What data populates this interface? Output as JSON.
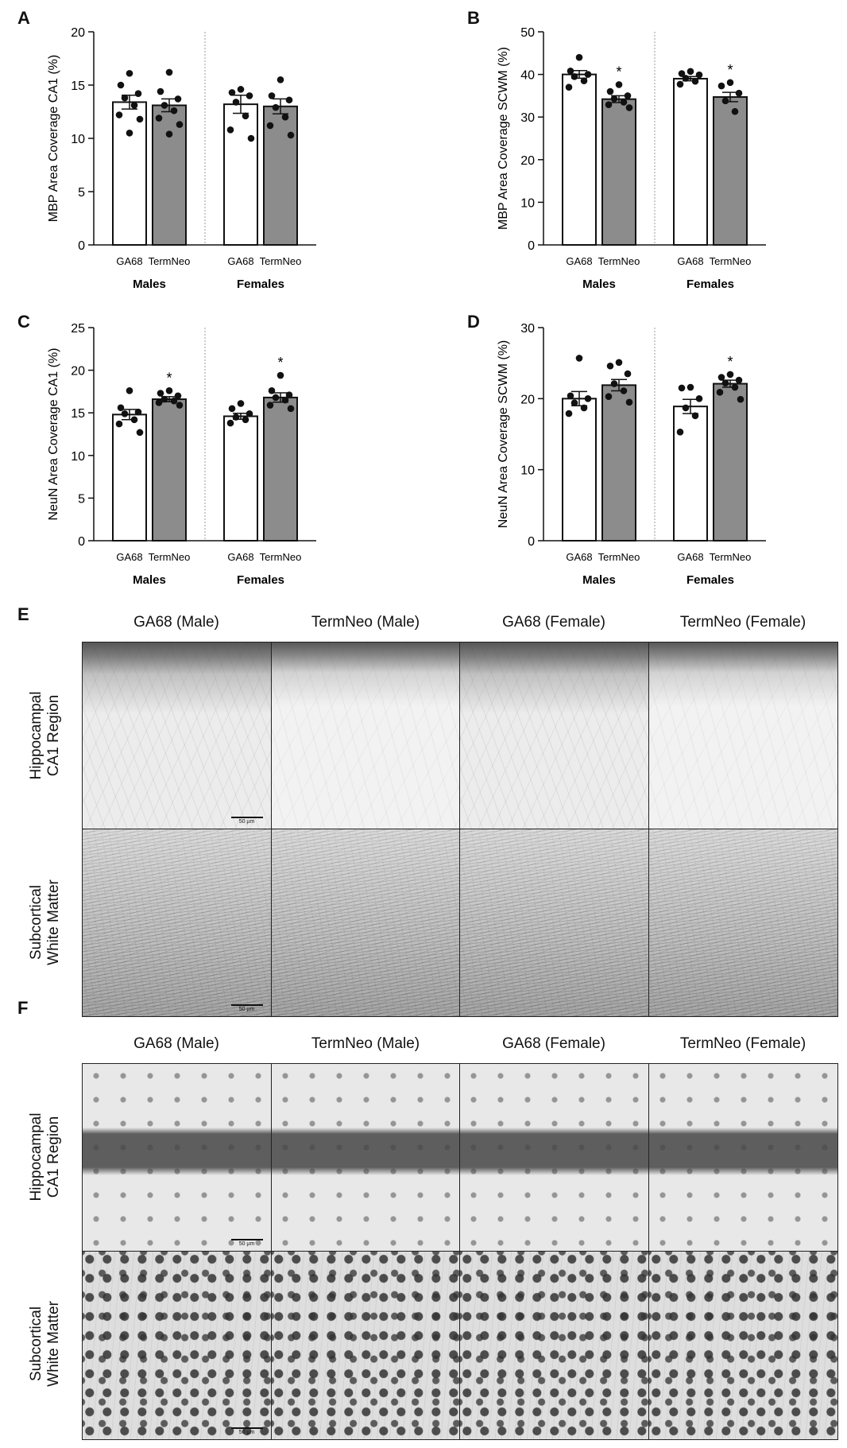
{
  "panel_letters": {
    "A": "A",
    "B": "B",
    "C": "C",
    "D": "D",
    "E": "E",
    "F": "F"
  },
  "chart_data": [
    {
      "id": "A",
      "type": "bar",
      "ylabel": "MBP Area Coverage CA1 (%)",
      "ylim": [
        0,
        20
      ],
      "yticks": [
        0,
        5,
        10,
        15,
        20
      ],
      "groups": [
        "Males",
        "Females"
      ],
      "categories": [
        "GA68",
        "TermNeo",
        "GA68",
        "TermNeo"
      ],
      "values": [
        13.4,
        13.1,
        13.2,
        13.0
      ],
      "errors": [
        0.65,
        0.6,
        0.85,
        0.7
      ],
      "colors": [
        "#ffffff",
        "#8c8c8c",
        "#ffffff",
        "#8c8c8c"
      ],
      "significant": [
        "",
        "",
        "",
        ""
      ],
      "points": [
        [
          16.1,
          15.0,
          14.2,
          13.8,
          13.1,
          12.2,
          11.8,
          10.5
        ],
        [
          16.2,
          14.4,
          13.7,
          13.1,
          12.6,
          11.9,
          11.3,
          10.4
        ],
        [
          14.6,
          14.3,
          14.0,
          13.4,
          12.1,
          10.8,
          10.0
        ],
        [
          15.5,
          14.0,
          13.6,
          12.9,
          12.0,
          11.2,
          10.3
        ]
      ]
    },
    {
      "id": "B",
      "type": "bar",
      "ylabel": "MBP Area Coverage SCWM (%)",
      "ylim": [
        0,
        50
      ],
      "yticks": [
        0,
        10,
        20,
        30,
        40,
        50
      ],
      "groups": [
        "Males",
        "Females"
      ],
      "categories": [
        "GA68",
        "TermNeo",
        "GA68",
        "TermNeo"
      ],
      "values": [
        40.0,
        34.2,
        39.0,
        34.7
      ],
      "errors": [
        0.9,
        0.8,
        0.5,
        1.1
      ],
      "colors": [
        "#ffffff",
        "#8c8c8c",
        "#ffffff",
        "#8c8c8c"
      ],
      "significant": [
        "",
        "*",
        "",
        "*"
      ],
      "points": [
        [
          44.0,
          40.8,
          40.0,
          39.5,
          38.5,
          37.0
        ],
        [
          37.6,
          36.0,
          35.0,
          34.3,
          33.5,
          32.9,
          32.2
        ],
        [
          40.7,
          40.2,
          39.9,
          39.1,
          38.4,
          37.7
        ],
        [
          38.1,
          37.3,
          35.6,
          33.8,
          31.3
        ]
      ]
    },
    {
      "id": "C",
      "type": "bar",
      "ylabel": "NeuN Area Coverage CA1 (%)",
      "ylim": [
        0,
        25
      ],
      "yticks": [
        0,
        5,
        10,
        15,
        20,
        25
      ],
      "groups": [
        "Males",
        "Females"
      ],
      "categories": [
        "GA68",
        "TermNeo",
        "GA68",
        "TermNeo"
      ],
      "values": [
        14.8,
        16.6,
        14.6,
        16.8
      ],
      "errors": [
        0.6,
        0.3,
        0.35,
        0.55
      ],
      "colors": [
        "#ffffff",
        "#8c8c8c",
        "#ffffff",
        "#8c8c8c"
      ],
      "significant": [
        "",
        "*",
        "",
        "*"
      ],
      "points": [
        [
          17.6,
          15.6,
          15.1,
          14.9,
          14.2,
          13.7,
          12.7
        ],
        [
          17.6,
          17.3,
          17.0,
          16.6,
          16.4,
          16.2,
          15.9
        ],
        [
          16.1,
          15.5,
          14.9,
          14.5,
          14.2,
          13.8
        ],
        [
          19.4,
          17.6,
          17.1,
          16.8,
          16.5,
          15.9,
          15.5
        ]
      ]
    },
    {
      "id": "D",
      "type": "bar",
      "ylabel": "NeuN Area Coverage SCWM (%)",
      "ylim": [
        0,
        30
      ],
      "yticks": [
        0,
        10,
        20,
        30
      ],
      "groups": [
        "Males",
        "Females"
      ],
      "categories": [
        "GA68",
        "TermNeo",
        "GA68",
        "TermNeo"
      ],
      "values": [
        20.0,
        21.9,
        18.9,
        22.1
      ],
      "errors": [
        1.0,
        0.8,
        1.0,
        0.5
      ],
      "colors": [
        "#ffffff",
        "#8c8c8c",
        "#ffffff",
        "#8c8c8c"
      ],
      "significant": [
        "",
        "",
        "",
        "*"
      ],
      "points": [
        [
          25.7,
          20.4,
          20.0,
          19.4,
          18.7,
          17.9
        ],
        [
          25.1,
          24.6,
          23.5,
          22.1,
          21.1,
          20.3,
          19.5
        ],
        [
          21.6,
          21.5,
          20.0,
          18.7,
          17.6,
          15.3
        ],
        [
          23.4,
          23.0,
          22.6,
          22.2,
          21.6,
          20.9,
          19.9
        ]
      ]
    }
  ],
  "micrographs": {
    "E": {
      "columns": [
        "GA68 (Male)",
        "TermNeo (Male)",
        "GA68 (Female)",
        "TermNeo (Female)"
      ],
      "rows": [
        "Hippocampal\nCA1 Region",
        "Subcortical\nWhite Matter"
      ],
      "scale_bar": "50 µm"
    },
    "F": {
      "columns": [
        "GA68 (Male)",
        "TermNeo (Male)",
        "GA68 (Female)",
        "TermNeo (Female)"
      ],
      "rows": [
        "Hippocampal\nCA1 Region",
        "Subcortical\nWhite Matter"
      ],
      "scale_bar": "50 µm"
    }
  }
}
